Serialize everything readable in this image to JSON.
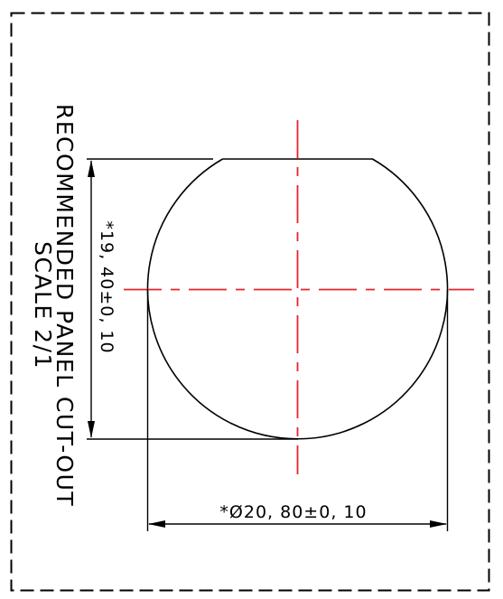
{
  "drawing": {
    "title_line1": "RECOMMENDED PANEL CUT-OUT",
    "title_line2": "SCALE 2/1",
    "dim_height": "*19, 40±0, 10",
    "dim_width": "*Ø20, 80±0, 10"
  },
  "colors": {
    "line": "#000000",
    "centerline": "#e8242a",
    "background": "#ffffff"
  }
}
